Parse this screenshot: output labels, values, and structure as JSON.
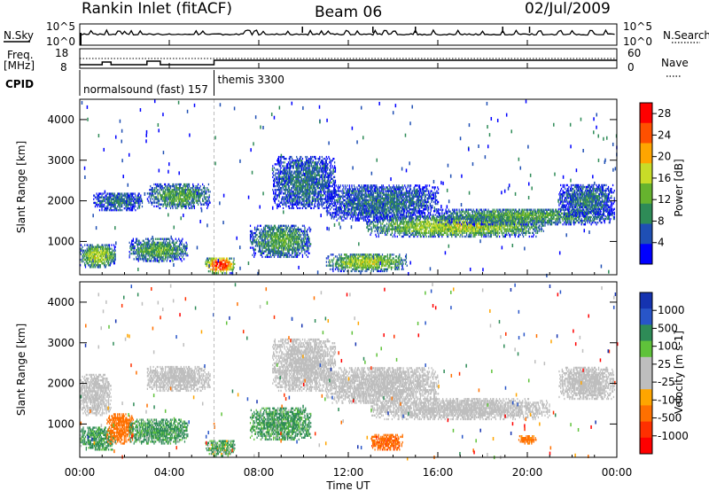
{
  "header": {
    "station": "Rankin Inlet (fitACF)",
    "beam": "Beam 06",
    "date": "02/Jul/2009"
  },
  "top_panel": {
    "nsky_label": "N.Sky",
    "nsearch_label": "N.Search",
    "y_hi": "10^5",
    "y_lo": "10^0",
    "freq_label": "Freq.",
    "freq_unit": "[MHz]",
    "freq_ticks": [
      "18",
      "8"
    ],
    "nave_label": "Nave",
    "nave_ticks": [
      "60",
      "0"
    ],
    "cpid_label": "CPID",
    "programs": [
      {
        "name": "normalsound (fast) 157",
        "start_hour": 0.0,
        "end_hour": 6.0
      },
      {
        "name": "themis 3300",
        "start_hour": 6.0,
        "end_hour": 24.0
      }
    ]
  },
  "colors": {
    "power_scale": [
      "#0000ff",
      "#1f4fb4",
      "#2e8b57",
      "#66b32e",
      "#c8dc28",
      "#ffa500",
      "#ff5000",
      "#ff0000"
    ],
    "velocity_scale": [
      "#1533b0",
      "#2855c8",
      "#2e8b57",
      "#5fc23a",
      "#bebebe",
      "#bebebe",
      "#ffa500",
      "#ff7000",
      "#ff3000",
      "#ff0000"
    ],
    "ground_scatter": "#bebebe"
  },
  "chart_data": [
    {
      "type": "heatmap",
      "title": "",
      "xlabel": "Time UT",
      "ylabel": "Slant Range [km]",
      "xlim": [
        0,
        24
      ],
      "ylim": [
        180,
        4500
      ],
      "x_ticks": [
        "00:00",
        "04:00",
        "08:00",
        "12:00",
        "16:00",
        "20:00",
        "00:00"
      ],
      "y_ticks": [
        1000,
        2000,
        3000,
        4000
      ],
      "colorbar": {
        "label": "Power [dB]",
        "range": [
          0,
          30
        ],
        "ticks": [
          4,
          8,
          12,
          16,
          20,
          24,
          28
        ]
      },
      "echo_regions": [
        {
          "hours": [
            0.0,
            1.6
          ],
          "range_km": [
            350,
            900
          ],
          "power_db": 16
        },
        {
          "hours": [
            0.6,
            2.8
          ],
          "range_km": [
            1750,
            2200
          ],
          "power_db": 8
        },
        {
          "hours": [
            2.2,
            4.8
          ],
          "range_km": [
            500,
            1050
          ],
          "power_db": 12
        },
        {
          "hours": [
            3.0,
            5.8
          ],
          "range_km": [
            1800,
            2400
          ],
          "power_db": 12
        },
        {
          "hours": [
            5.6,
            6.9
          ],
          "range_km": [
            200,
            600
          ],
          "power_db": 28
        },
        {
          "hours": [
            7.6,
            10.3
          ],
          "range_km": [
            600,
            1400
          ],
          "power_db": 12
        },
        {
          "hours": [
            8.6,
            11.4
          ],
          "range_km": [
            1800,
            3100
          ],
          "power_db": 8
        },
        {
          "hours": [
            11.0,
            14.6
          ],
          "range_km": [
            250,
            700
          ],
          "power_db": 16
        },
        {
          "hours": [
            11.0,
            16.0
          ],
          "range_km": [
            1500,
            2400
          ],
          "power_db": 8
        },
        {
          "hours": [
            12.8,
            20.8
          ],
          "range_km": [
            1100,
            1600
          ],
          "power_db": 16
        },
        {
          "hours": [
            16.0,
            23.9
          ],
          "range_km": [
            1400,
            1800
          ],
          "power_db": 12
        },
        {
          "hours": [
            21.4,
            23.9
          ],
          "range_km": [
            1600,
            2400
          ],
          "power_db": 8
        }
      ]
    },
    {
      "type": "heatmap",
      "title": "",
      "xlabel": "Time UT",
      "ylabel": "Slant Range [km]",
      "xlim": [
        0,
        24
      ],
      "ylim": [
        180,
        4500
      ],
      "x_ticks": [
        "00:00",
        "04:00",
        "08:00",
        "12:00",
        "16:00",
        "20:00",
        "00:00"
      ],
      "y_ticks": [
        1000,
        2000,
        3000,
        4000
      ],
      "colorbar": {
        "label": "Velocity [m s-1]",
        "range": [
          -1250,
          1250
        ],
        "ticks": [
          1000,
          500,
          100,
          25,
          -25,
          -100,
          -500,
          -1000
        ]
      },
      "echo_regions": [
        {
          "hours": [
            0.0,
            1.4
          ],
          "range_km": [
            1200,
            2200
          ],
          "velocity": 0,
          "ground_scatter": true
        },
        {
          "hours": [
            0.0,
            1.6
          ],
          "range_km": [
            350,
            900
          ],
          "velocity": 150
        },
        {
          "hours": [
            1.2,
            2.4
          ],
          "range_km": [
            500,
            1250
          ],
          "velocity": -300
        },
        {
          "hours": [
            2.2,
            4.8
          ],
          "range_km": [
            500,
            1100
          ],
          "velocity": 150
        },
        {
          "hours": [
            3.0,
            5.8
          ],
          "range_km": [
            1800,
            2400
          ],
          "velocity": 0,
          "ground_scatter": true
        },
        {
          "hours": [
            5.6,
            6.9
          ],
          "range_km": [
            200,
            600
          ],
          "velocity": 100
        },
        {
          "hours": [
            7.6,
            10.3
          ],
          "range_km": [
            600,
            1400
          ],
          "velocity": 150
        },
        {
          "hours": [
            8.6,
            11.4
          ],
          "range_km": [
            1800,
            3100
          ],
          "velocity": 0,
          "ground_scatter": true
        },
        {
          "hours": [
            13.0,
            14.4
          ],
          "range_km": [
            350,
            750
          ],
          "velocity": -400
        },
        {
          "hours": [
            11.0,
            16.0
          ],
          "range_km": [
            1500,
            2400
          ],
          "velocity": 0,
          "ground_scatter": true
        },
        {
          "hours": [
            13.0,
            21.0
          ],
          "range_km": [
            1100,
            1600
          ],
          "velocity": 0,
          "ground_scatter": true
        },
        {
          "hours": [
            19.6,
            20.4
          ],
          "range_km": [
            500,
            700
          ],
          "velocity": -200
        },
        {
          "hours": [
            21.4,
            23.9
          ],
          "range_km": [
            1600,
            2400
          ],
          "velocity": 0,
          "ground_scatter": true
        }
      ]
    }
  ]
}
